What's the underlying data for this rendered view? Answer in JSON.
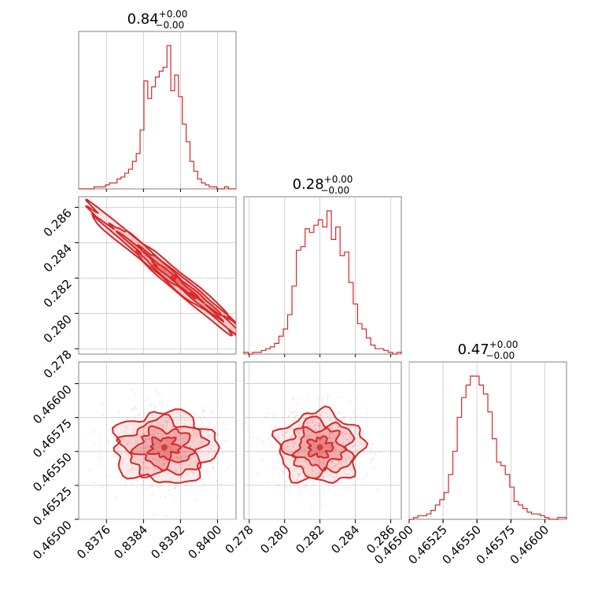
{
  "chart_data": {
    "type": "corner",
    "color": "#d62728",
    "grid": true,
    "parameters": [
      {
        "title_value": "0.84",
        "err_plus": "+0.00",
        "err_minus": "−0.00",
        "range": [
          0.837,
          0.8404
        ],
        "ticks": [
          0.8376,
          0.8384,
          0.8392,
          0.84
        ],
        "tick_labels": [
          "0.8376",
          "0.8384",
          "0.8392",
          "0.8400"
        ]
      },
      {
        "title_value": "0.28",
        "err_plus": "+0.00",
        "err_minus": "−0.00",
        "range": [
          0.2777,
          0.2866
        ],
        "ticks": [
          0.278,
          0.28,
          0.282,
          0.284,
          0.286
        ],
        "tick_labels": [
          "0.278",
          "0.280",
          "0.282",
          "0.284",
          "0.286"
        ]
      },
      {
        "title_value": "0.47",
        "err_plus": "+0.00",
        "err_minus": "−0.00",
        "range": [
          0.465,
          0.46616
        ],
        "ticks": [
          0.465,
          0.46525,
          0.4655,
          0.46575,
          0.466
        ],
        "tick_labels": [
          "0.46500",
          "0.46525",
          "0.46550",
          "0.46575",
          "0.46600"
        ]
      }
    ],
    "histograms": [
      {
        "param": 0,
        "bin_range": [
          0.837,
          0.8404
        ],
        "counts": [
          0,
          0,
          0,
          0,
          1,
          1,
          1,
          2,
          3,
          3,
          5,
          6,
          8,
          10,
          14,
          18,
          30,
          55,
          46,
          52,
          57,
          60,
          62,
          73,
          50,
          58,
          47,
          33,
          24,
          14,
          9,
          5,
          3,
          2,
          1,
          1,
          0,
          0,
          1,
          0,
          0
        ]
      },
      {
        "param": 1,
        "bin_range": [
          0.2777,
          0.2866
        ],
        "counts": [
          1,
          0,
          1,
          1,
          2,
          3,
          4,
          6,
          10,
          14,
          22,
          38,
          58,
          60,
          70,
          68,
          72,
          75,
          71,
          80,
          64,
          71,
          55,
          57,
          40,
          28,
          17,
          14,
          9,
          5,
          3,
          3,
          2,
          1,
          0,
          1
        ]
      },
      {
        "param": 2,
        "bin_range": [
          0.465,
          0.46616
        ],
        "counts": [
          0,
          1,
          2,
          2,
          3,
          5,
          8,
          11,
          15,
          25,
          38,
          57,
          68,
          75,
          80,
          80,
          75,
          70,
          60,
          45,
          32,
          30,
          25,
          18,
          10,
          8,
          6,
          4,
          3,
          3,
          2,
          1,
          0,
          0,
          1,
          1
        ]
      }
    ],
    "pairs": [
      {
        "x": 0,
        "y": 1,
        "relation": "strong negative correlation",
        "center": [
          0.83905,
          0.282
        ],
        "sd": [
          0.00055,
          0.0012
        ],
        "corr": -0.98
      },
      {
        "x": 0,
        "y": 2,
        "relation": "uncorrelated",
        "center": [
          0.83885,
          0.46553
        ],
        "sd": [
          0.00055,
          0.00013
        ],
        "corr": 0.0
      },
      {
        "x": 1,
        "y": 2,
        "relation": "uncorrelated",
        "center": [
          0.282,
          0.46553
        ],
        "sd": [
          0.0012,
          0.00013
        ],
        "corr": 0.0
      }
    ]
  }
}
